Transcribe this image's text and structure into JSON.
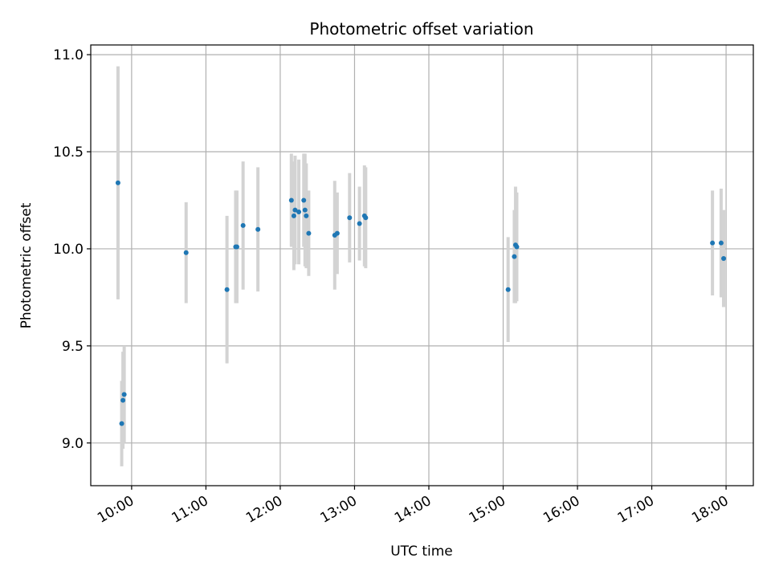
{
  "chart_data": {
    "type": "scatter",
    "title": "Photometric offset variation",
    "xlabel": "UTC time",
    "ylabel": "Photometric offset",
    "xlim": [
      "09:27",
      "18:22"
    ],
    "ylim": [
      8.78,
      11.05
    ],
    "grid": true,
    "x_ticks": [
      "10:00",
      "11:00",
      "12:00",
      "13:00",
      "14:00",
      "15:00",
      "16:00",
      "17:00",
      "18:00"
    ],
    "y_ticks": [
      "9.0",
      "9.5",
      "10.0",
      "10.5",
      "11.0"
    ],
    "point_color": "#1f77b4",
    "errorbar_color": "#d3d3d3",
    "points": [
      {
        "t": "09:49",
        "y": 10.34,
        "err": 0.6
      },
      {
        "t": "09:52",
        "y": 9.1,
        "err": 0.22
      },
      {
        "t": "09:53",
        "y": 9.22,
        "err": 0.25
      },
      {
        "t": "09:54",
        "y": 9.25,
        "err": 0.25
      },
      {
        "t": "10:44",
        "y": 9.98,
        "err": 0.26
      },
      {
        "t": "11:17",
        "y": 9.79,
        "err": 0.38
      },
      {
        "t": "11:24",
        "y": 10.01,
        "err": 0.29
      },
      {
        "t": "11:25",
        "y": 10.01,
        "err": 0.29
      },
      {
        "t": "11:30",
        "y": 10.12,
        "err": 0.33
      },
      {
        "t": "11:42",
        "y": 10.1,
        "err": 0.32
      },
      {
        "t": "12:09",
        "y": 10.25,
        "err": 0.24
      },
      {
        "t": "12:11",
        "y": 10.17,
        "err": 0.28
      },
      {
        "t": "12:12",
        "y": 10.2,
        "err": 0.28
      },
      {
        "t": "12:15",
        "y": 10.19,
        "err": 0.27
      },
      {
        "t": "12:19",
        "y": 10.25,
        "err": 0.24
      },
      {
        "t": "12:20",
        "y": 10.2,
        "err": 0.29
      },
      {
        "t": "12:21",
        "y": 10.17,
        "err": 0.27
      },
      {
        "t": "12:23",
        "y": 10.08,
        "err": 0.22
      },
      {
        "t": "12:44",
        "y": 10.07,
        "err": 0.28
      },
      {
        "t": "12:46",
        "y": 10.08,
        "err": 0.21
      },
      {
        "t": "12:56",
        "y": 10.16,
        "err": 0.23
      },
      {
        "t": "13:04",
        "y": 10.13,
        "err": 0.19
      },
      {
        "t": "13:08",
        "y": 10.17,
        "err": 0.26
      },
      {
        "t": "13:09",
        "y": 10.16,
        "err": 0.26
      },
      {
        "t": "15:04",
        "y": 9.79,
        "err": 0.27
      },
      {
        "t": "15:09",
        "y": 9.96,
        "err": 0.24
      },
      {
        "t": "15:10",
        "y": 10.02,
        "err": 0.3
      },
      {
        "t": "15:11",
        "y": 10.01,
        "err": 0.28
      },
      {
        "t": "17:49",
        "y": 10.03,
        "err": 0.27
      },
      {
        "t": "17:56",
        "y": 10.03,
        "err": 0.28
      },
      {
        "t": "17:58",
        "y": 9.95,
        "err": 0.25
      }
    ]
  }
}
